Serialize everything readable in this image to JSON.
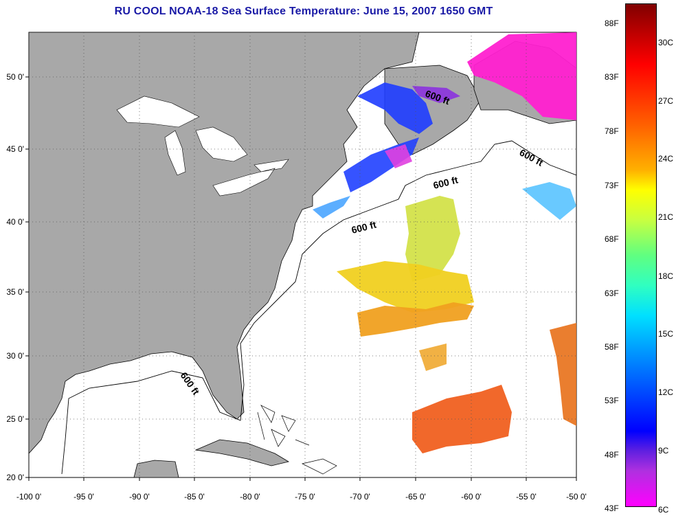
{
  "title": "RU COOL  NOAA-18  Sea Surface Temperature:  June 15, 2007 1650 GMT",
  "map": {
    "lon_ticks": [
      "-100 0'",
      "-95 0'",
      "-90 0'",
      "-85 0'",
      "-80 0'",
      "-75 0'",
      "-70 0'",
      "-65 0'",
      "-60 0'",
      "-55 0'",
      "-50 0'"
    ],
    "lat_ticks": [
      "50 0'",
      "45 0'",
      "40 0'",
      "35 0'",
      "30 0'",
      "25 0'",
      "20 0'"
    ],
    "contour_labels": [
      "600 ft",
      "600 ft",
      "600 ft",
      "600 ft",
      "600 ft"
    ],
    "land_color": "#a8a8a8",
    "water_color": "#ffffff"
  },
  "colorbar": {
    "fahrenheit": [
      "88F",
      "83F",
      "78F",
      "73F",
      "68F",
      "63F",
      "58F",
      "53F",
      "48F",
      "43F"
    ],
    "celsius": [
      "30C",
      "27C",
      "24C",
      "21C",
      "18C",
      "15C",
      "12C",
      "9C",
      "6C"
    ]
  }
}
